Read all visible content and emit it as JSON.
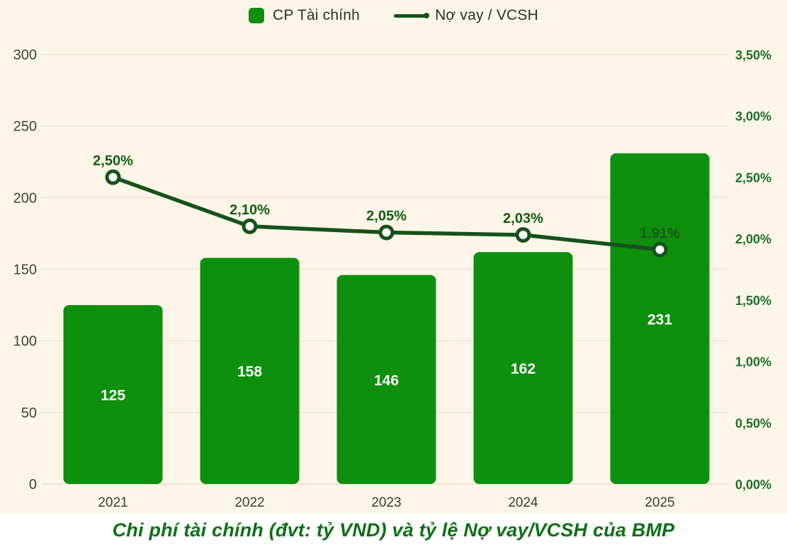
{
  "legend": {
    "bar_label": "CP Tài chính",
    "line_label": "Nợ vay / VCSH"
  },
  "colors": {
    "background": "#FDF6E8",
    "bar": "#0E8F0E",
    "line": "#15511E",
    "marker_fill": "#FFFFFF",
    "grid": "#EFE7D5",
    "axis": "#E4DCC7",
    "left_tick_text": "#42413C",
    "right_tick_text": "#1E6E2D",
    "point_label_text": "#145A14",
    "bar_label_text": "#FFFFFF",
    "title_text": "#0D7015"
  },
  "chart_data": {
    "type": "bar",
    "subtype": "bar-line-combo",
    "title": "Chi phí tài chính (đvt: tỷ VND) và tỷ lệ Nợ vay/VCSH của BMP",
    "categories": [
      "2021",
      "2022",
      "2023",
      "2024",
      "2025"
    ],
    "series": [
      {
        "name": "CP Tài chính",
        "type": "bar",
        "axis": "left",
        "values": [
          125,
          158,
          146,
          162,
          231
        ]
      },
      {
        "name": "Nợ vay / VCSH",
        "type": "line",
        "axis": "right",
        "values": [
          2.5,
          2.1,
          2.05,
          2.03,
          1.91
        ],
        "labels": [
          "2,50%",
          "2,10%",
          "2,05%",
          "2,03%",
          "1,91%"
        ]
      }
    ],
    "left_axis": {
      "min": 0,
      "max": 300,
      "ticks": [
        0,
        50,
        100,
        150,
        200,
        250,
        300
      ],
      "tick_labels": [
        "0",
        "50",
        "100",
        "150",
        "200",
        "250",
        "300"
      ]
    },
    "right_axis": {
      "min": 0,
      "max": 3.5,
      "tick_values": [
        0,
        0.5,
        1.0,
        1.5,
        2.0,
        2.5,
        3.0,
        3.5
      ],
      "tick_labels": [
        "0,00%",
        "0,50%",
        "1,00%",
        "1,50%",
        "2,00%",
        "2,50%",
        "3,00%",
        "3,50%"
      ]
    },
    "grid": true,
    "legend_position": "top"
  }
}
